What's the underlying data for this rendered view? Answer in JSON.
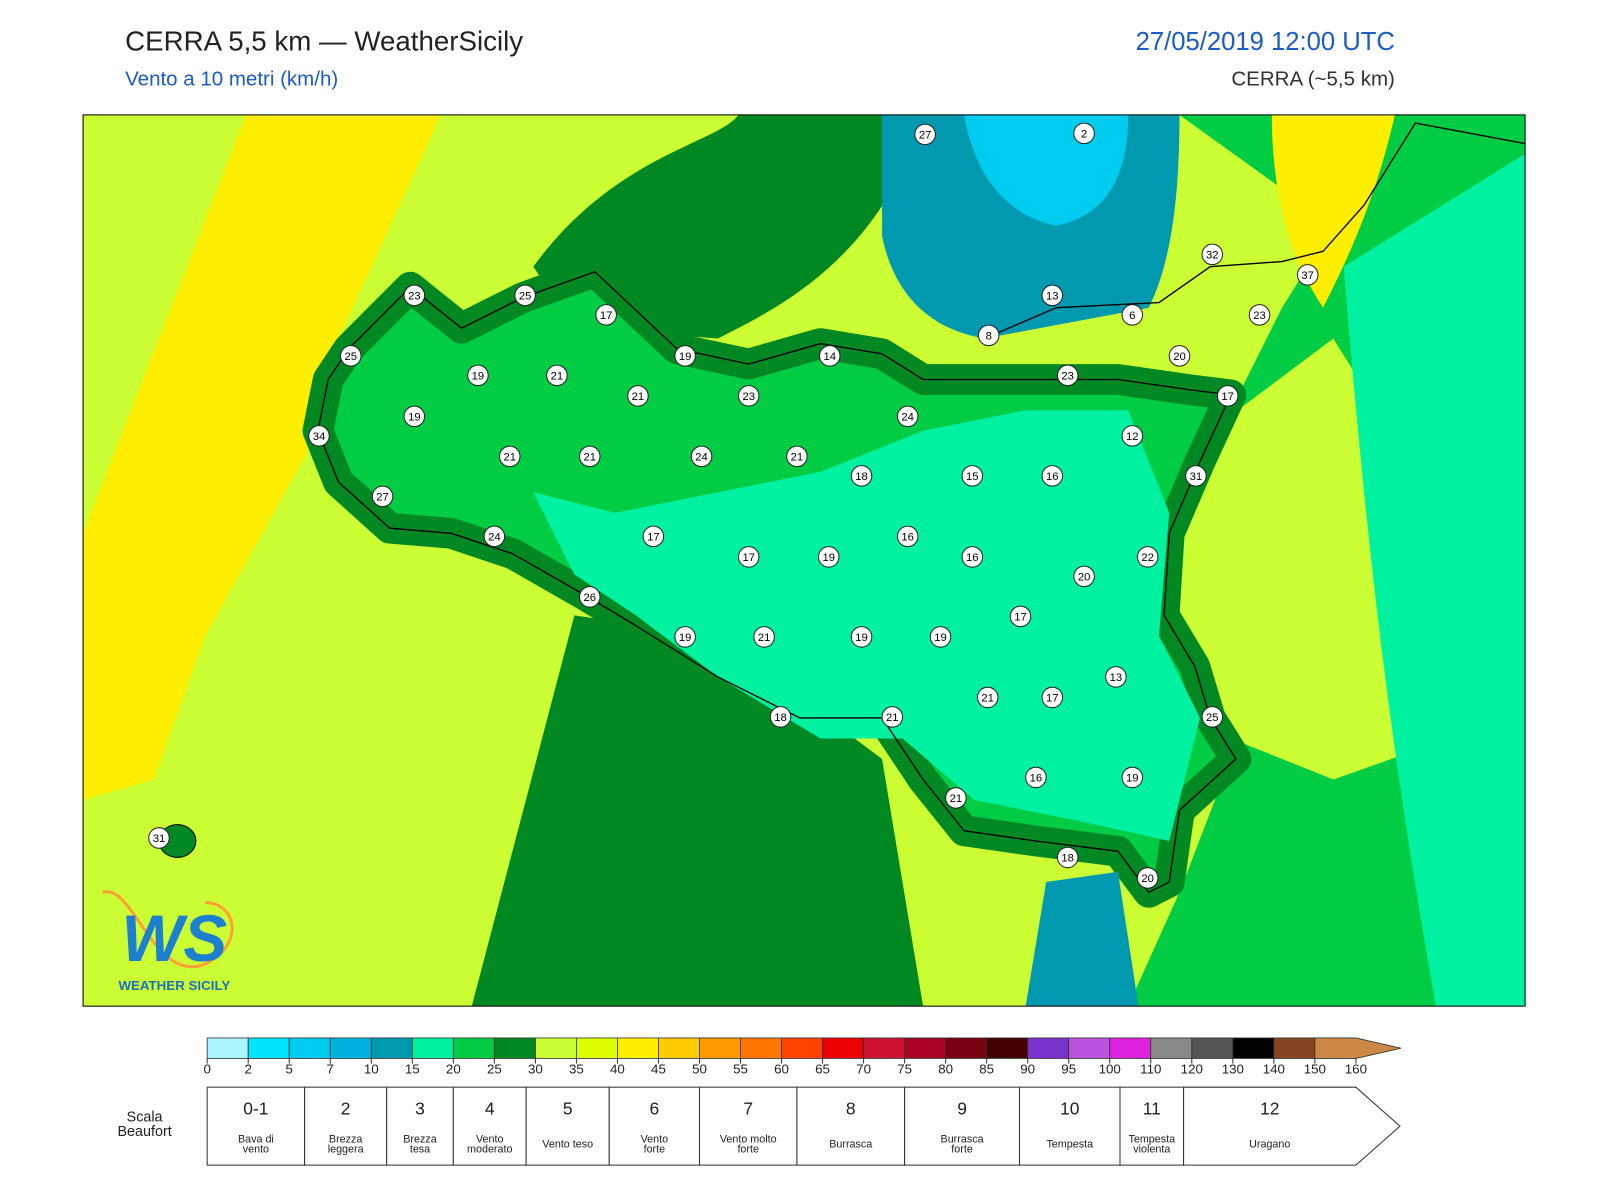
{
  "header": {
    "title": "CERRA 5,5 km — WeatherSicily",
    "subtitle": "Vento a 10 metri (km/h)",
    "datetime": "27/05/2019 12:00 UTC",
    "model": "CERRA (~5,5 km)"
  },
  "logo": {
    "mark": "WS",
    "text": "WEATHER SICILY"
  },
  "stations": [
    27,
    2,
    32,
    37,
    23,
    25,
    13,
    6,
    23,
    17,
    8,
    25,
    19,
    14,
    20,
    19,
    21,
    23,
    21,
    23,
    17,
    19,
    24,
    34,
    12,
    21,
    21,
    24,
    21,
    18,
    15,
    16,
    31,
    27,
    24,
    17,
    16,
    17,
    19,
    16,
    22,
    20,
    26,
    17,
    19,
    21,
    19,
    19,
    13,
    21,
    17,
    18,
    21,
    25,
    16,
    19,
    21,
    31,
    18,
    20
  ],
  "colorbar": {
    "ticks": [
      0,
      2,
      5,
      7,
      10,
      15,
      20,
      25,
      30,
      35,
      40,
      45,
      50,
      55,
      60,
      65,
      70,
      75,
      80,
      85,
      90,
      95,
      100,
      110,
      120,
      130,
      140,
      150,
      160
    ],
    "colors": [
      "#aaf4ff",
      "#00e5ff",
      "#00ccf0",
      "#00b4e0",
      "#0099b0",
      "#00f2a0",
      "#00cc44",
      "#008822",
      "#ccff33",
      "#ddff00",
      "#ffee00",
      "#ffcc00",
      "#ff9900",
      "#ff7700",
      "#ff4400",
      "#ee0000",
      "#cc1133",
      "#aa0022",
      "#770011",
      "#440000",
      "#7733cc",
      "#bb55dd",
      "#dd22dd",
      "#888888",
      "#555555",
      "#000000",
      "#884422",
      "#cc8844"
    ]
  },
  "beaufort": {
    "title": [
      "Scala",
      "Beaufort"
    ],
    "levels": [
      {
        "force": "0-1",
        "name": [
          "Bava di",
          "vento"
        ]
      },
      {
        "force": "2",
        "name": [
          "Brezza",
          "leggera"
        ]
      },
      {
        "force": "3",
        "name": [
          "Brezza",
          "tesa"
        ]
      },
      {
        "force": "4",
        "name": [
          "Vento",
          "moderato"
        ]
      },
      {
        "force": "5",
        "name": [
          "Vento teso"
        ]
      },
      {
        "force": "6",
        "name": [
          "Vento",
          "forte"
        ]
      },
      {
        "force": "7",
        "name": [
          "Vento molto",
          "forte"
        ]
      },
      {
        "force": "8",
        "name": [
          "Burrasca"
        ]
      },
      {
        "force": "9",
        "name": [
          "Burrasca",
          "forte"
        ]
      },
      {
        "force": "10",
        "name": [
          "Tempesta"
        ]
      },
      {
        "force": "11",
        "name": [
          "Tempesta",
          "violenta"
        ]
      },
      {
        "force": "12",
        "name": [
          "Uragano"
        ]
      }
    ]
  }
}
